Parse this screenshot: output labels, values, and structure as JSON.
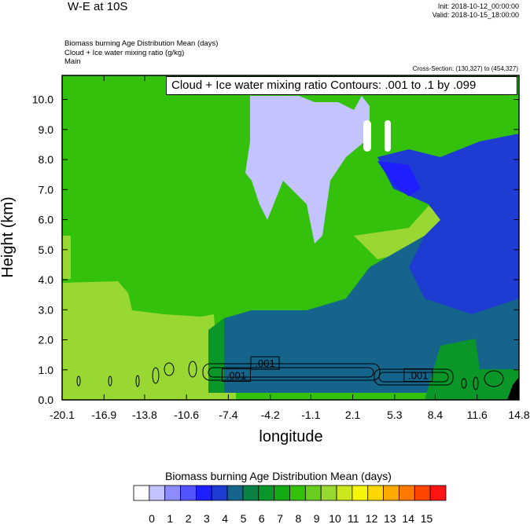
{
  "header": {
    "title": "W-E at 10S",
    "init": "Init: 2018-10-12_00:00:00",
    "valid": "Valid: 2018-10-15_18:00:00",
    "field1": "Biomass burning Age Distribution Mean   (days)",
    "field2": "Cloud + Ice water mixing ratio   (g/kg)",
    "field3": "Main",
    "cross_section": "Cross-Section: (130,327) to (454,327)"
  },
  "contour_label": "Cloud + Ice water mixing ratio Contours: .001 to .1 by .099",
  "colors": {
    "background_green": "#33c10b",
    "light_green": "#99d833"
  },
  "chart_data": {
    "type": "heatmap",
    "title": "W-E at 10S",
    "xlabel": "longitude",
    "ylabel": "Height (km)",
    "xlim": [
      -20.1,
      14.8
    ],
    "ylim": [
      0.0,
      10.8
    ],
    "x_ticks": [
      "-20.1",
      "-16.9",
      "-13.8",
      "-10.6",
      "-7.4",
      "-4.2",
      "-1.1",
      "2.1",
      "5.3",
      "8.4",
      "11.6",
      "14.8"
    ],
    "y_ticks": [
      "0.0",
      "1.0",
      "2.0",
      "3.0",
      "4.0",
      "5.0",
      "6.0",
      "7.0",
      "8.0",
      "9.0",
      "10.0"
    ],
    "contour_labels": [
      {
        "text": ".001",
        "x": -4.6,
        "y": 1.2
      },
      {
        "text": ".001",
        "x": -6.8,
        "y": 0.8
      },
      {
        "text": ".001",
        "x": 7.1,
        "y": 0.8
      }
    ],
    "colorbar": {
      "title": "Biomass burning Age Distribution Mean  (days)",
      "labels": [
        "0",
        "1",
        "2",
        "3",
        "4",
        "5",
        "6",
        "7",
        "8",
        "9",
        "10",
        "11",
        "12",
        "13",
        "14",
        "15"
      ],
      "colors": [
        "#ffffff",
        "#c3c3ff",
        "#8c8cff",
        "#5252ff",
        "#1e1eff",
        "#1e3cd2",
        "#14648c",
        "#0a8246",
        "#0a9628",
        "#14aa14",
        "#33c10b",
        "#68cd1e",
        "#99d833",
        "#cce61e",
        "#f5f50a",
        "#ffd700",
        "#ffaa00",
        "#ff7800",
        "#ff4600",
        "#ff1414"
      ]
    }
  }
}
